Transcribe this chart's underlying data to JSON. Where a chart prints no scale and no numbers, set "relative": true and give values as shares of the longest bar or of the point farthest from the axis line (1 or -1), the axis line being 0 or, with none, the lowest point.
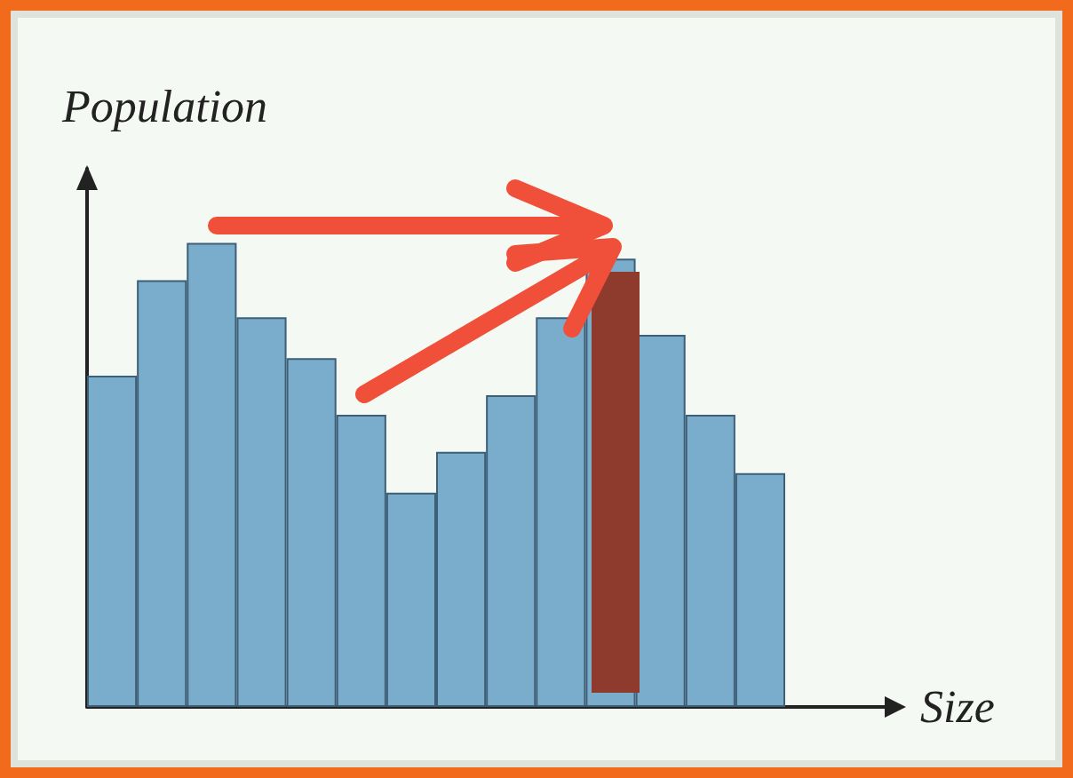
{
  "chart_data": {
    "type": "bar",
    "relative": true,
    "xlabel": "Size",
    "ylabel": "Population",
    "grid": false,
    "categories": [
      null,
      null,
      null,
      null,
      null,
      null,
      null,
      null,
      null,
      null,
      null,
      null,
      null,
      null
    ],
    "series": [
      {
        "color": "#7aaccb",
        "values": [
          0.714,
          0.92,
          1,
          0.84,
          0.752,
          0.63,
          0.462,
          0.55,
          0.672,
          0.84,
          0.966,
          0.802,
          0.63,
          0.504
        ]
      }
    ]
  }
}
